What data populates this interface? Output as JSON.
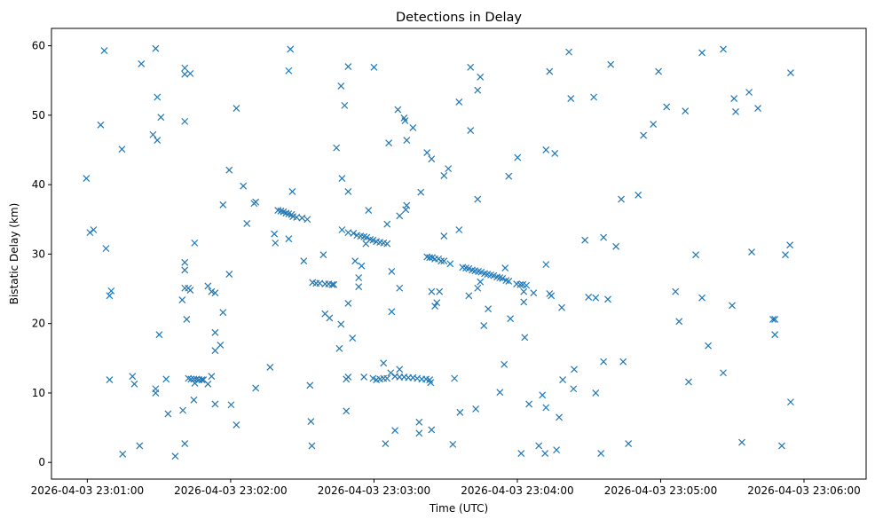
{
  "chart_data": {
    "type": "scatter",
    "title": "Detections in Delay",
    "xlabel": "Time (UTC)",
    "ylabel": "Bistatic Delay (km)",
    "x_units": "seconds after 2026-04-03 23:00:00 UTC",
    "xlim": [
      45,
      386
    ],
    "ylim": [
      -2.4,
      62.5
    ],
    "x_ticks": [
      {
        "value": 60,
        "label": "2026-04-03 23:01:00"
      },
      {
        "value": 120,
        "label": "2026-04-03 23:02:00"
      },
      {
        "value": 180,
        "label": "2026-04-03 23:03:00"
      },
      {
        "value": 240,
        "label": "2026-04-03 23:04:00"
      },
      {
        "value": 300,
        "label": "2026-04-03 23:05:00"
      },
      {
        "value": 360,
        "label": "2026-04-03 23:06:00"
      }
    ],
    "y_ticks": [
      {
        "value": 0,
        "label": "0"
      },
      {
        "value": 10,
        "label": "10"
      },
      {
        "value": 20,
        "label": "20"
      },
      {
        "value": 30,
        "label": "30"
      },
      {
        "value": 40,
        "label": "40"
      },
      {
        "value": 50,
        "label": "50"
      },
      {
        "value": 60,
        "label": "60"
      }
    ],
    "grid": false,
    "marker": "x",
    "color": "#1f77b4",
    "points": [
      [
        59.6,
        40.9
      ],
      [
        61.1,
        33.1
      ],
      [
        62.6,
        33.5
      ],
      [
        65.6,
        48.6
      ],
      [
        67.1,
        59.3
      ],
      [
        67.8,
        30.8
      ],
      [
        69.3,
        24.0
      ],
      [
        70.0,
        24.7
      ],
      [
        69.3,
        11.9
      ],
      [
        74.5,
        45.1
      ],
      [
        74.8,
        1.2
      ],
      [
        78.9,
        12.4
      ],
      [
        79.7,
        11.3
      ],
      [
        81.9,
        2.4
      ],
      [
        82.6,
        57.4
      ],
      [
        88.6,
        59.6
      ],
      [
        87.5,
        47.2
      ],
      [
        89.3,
        46.4
      ],
      [
        89.3,
        52.6
      ],
      [
        90.8,
        49.7
      ],
      [
        90.1,
        18.4
      ],
      [
        88.6,
        10.6
      ],
      [
        88.6,
        10.0
      ],
      [
        93.0,
        12.0
      ],
      [
        93.8,
        7.0
      ],
      [
        96.8,
        0.9
      ],
      [
        100.8,
        56.8
      ],
      [
        100.8,
        55.9
      ],
      [
        103.1,
        56.0
      ],
      [
        100.8,
        49.1
      ],
      [
        100.8,
        28.8
      ],
      [
        100.8,
        27.7
      ],
      [
        99.7,
        23.4
      ],
      [
        100.8,
        25.1
      ],
      [
        102.3,
        25.1
      ],
      [
        103.1,
        24.8
      ],
      [
        101.6,
        20.6
      ],
      [
        100.0,
        7.5
      ],
      [
        100.8,
        2.7
      ],
      [
        104.9,
        31.6
      ],
      [
        102.3,
        12.1
      ],
      [
        103.4,
        12.0
      ],
      [
        104.6,
        12.0
      ],
      [
        105.7,
        12.0
      ],
      [
        106.8,
        11.9
      ],
      [
        107.9,
        11.9
      ],
      [
        108.6,
        11.9
      ],
      [
        104.6,
        9.0
      ],
      [
        105.0,
        11.4
      ],
      [
        110.5,
        11.3
      ],
      [
        112.0,
        12.4
      ],
      [
        110.5,
        25.4
      ],
      [
        112.0,
        24.6
      ],
      [
        113.5,
        24.4
      ],
      [
        113.5,
        18.7
      ],
      [
        113.5,
        16.1
      ],
      [
        113.5,
        8.4
      ],
      [
        115.7,
        16.9
      ],
      [
        116.8,
        21.6
      ],
      [
        116.8,
        37.1
      ],
      [
        119.4,
        42.1
      ],
      [
        119.4,
        27.1
      ],
      [
        120.2,
        8.3
      ],
      [
        122.4,
        5.4
      ],
      [
        122.4,
        51.0
      ],
      [
        125.3,
        39.8
      ],
      [
        126.8,
        34.4
      ],
      [
        129.8,
        37.3
      ],
      [
        130.5,
        37.5
      ],
      [
        130.5,
        10.7
      ],
      [
        136.5,
        13.7
      ],
      [
        138.3,
        32.9
      ],
      [
        138.7,
        31.6
      ],
      [
        139.8,
        36.3
      ],
      [
        141.0,
        36.2
      ],
      [
        142.1,
        36.1
      ],
      [
        143.2,
        35.9
      ],
      [
        144.3,
        35.8
      ],
      [
        145.5,
        35.7
      ],
      [
        146.1,
        35.4
      ],
      [
        144.3,
        56.4
      ],
      [
        145.0,
        59.5
      ],
      [
        144.3,
        32.2
      ],
      [
        145.8,
        39.0
      ],
      [
        147.6,
        35.3
      ],
      [
        149.9,
        35.2
      ],
      [
        152.1,
        35.0
      ],
      [
        150.6,
        29.0
      ],
      [
        153.2,
        11.1
      ],
      [
        153.6,
        5.9
      ],
      [
        154.0,
        2.4
      ],
      [
        154.3,
        25.9
      ],
      [
        155.8,
        25.8
      ],
      [
        157.3,
        25.8
      ],
      [
        159.5,
        25.7
      ],
      [
        161.0,
        25.7
      ],
      [
        162.5,
        25.6
      ],
      [
        163.2,
        25.6
      ],
      [
        158.8,
        29.9
      ],
      [
        159.5,
        21.4
      ],
      [
        161.4,
        20.8
      ],
      [
        164.3,
        45.3
      ],
      [
        166.2,
        54.2
      ],
      [
        166.6,
        40.9
      ],
      [
        166.2,
        19.9
      ],
      [
        165.5,
        16.4
      ],
      [
        167.7,
        51.4
      ],
      [
        169.2,
        57.0
      ],
      [
        169.2,
        39.0
      ],
      [
        169.2,
        22.9
      ],
      [
        168.4,
        12.0
      ],
      [
        169.2,
        12.3
      ],
      [
        168.4,
        7.4
      ],
      [
        171.0,
        17.9
      ],
      [
        172.1,
        29.0
      ],
      [
        173.6,
        26.6
      ],
      [
        173.6,
        25.3
      ],
      [
        174.8,
        28.3
      ],
      [
        166.6,
        33.5
      ],
      [
        169.2,
        33.1
      ],
      [
        171.4,
        33.0
      ],
      [
        172.9,
        32.7
      ],
      [
        174.4,
        32.6
      ],
      [
        175.8,
        32.5
      ],
      [
        177.0,
        32.4
      ],
      [
        178.4,
        32.1
      ],
      [
        179.6,
        32.0
      ],
      [
        181.0,
        31.8
      ],
      [
        182.5,
        31.7
      ],
      [
        184.0,
        31.6
      ],
      [
        185.5,
        31.5
      ],
      [
        175.8,
        12.3
      ],
      [
        177.7,
        36.3
      ],
      [
        176.6,
        31.5
      ],
      [
        180.0,
        56.9
      ],
      [
        179.6,
        12.1
      ],
      [
        181.0,
        11.9
      ],
      [
        182.5,
        12.0
      ],
      [
        184.0,
        12.1
      ],
      [
        185.5,
        12.1
      ],
      [
        184.0,
        14.3
      ],
      [
        184.8,
        2.7
      ],
      [
        185.5,
        34.3
      ],
      [
        186.2,
        46.0
      ],
      [
        187.4,
        27.5
      ],
      [
        187.4,
        21.7
      ],
      [
        188.8,
        4.6
      ],
      [
        190.0,
        50.8
      ],
      [
        190.7,
        25.1
      ],
      [
        190.7,
        13.4
      ],
      [
        190.7,
        35.5
      ],
      [
        187.0,
        12.9
      ],
      [
        188.8,
        12.4
      ],
      [
        190.7,
        12.3
      ],
      [
        192.6,
        12.3
      ],
      [
        194.4,
        12.2
      ],
      [
        196.3,
        12.2
      ],
      [
        198.1,
        12.1
      ],
      [
        200.0,
        12.0
      ],
      [
        201.8,
        12.0
      ],
      [
        203.3,
        11.9
      ],
      [
        203.7,
        11.5
      ],
      [
        192.6,
        49.6
      ],
      [
        193.0,
        49.2
      ],
      [
        193.7,
        37.0
      ],
      [
        193.3,
        36.4
      ],
      [
        193.7,
        46.4
      ],
      [
        196.3,
        48.2
      ],
      [
        198.9,
        5.8
      ],
      [
        198.9,
        4.2
      ],
      [
        199.6,
        38.9
      ],
      [
        202.2,
        44.6
      ],
      [
        204.1,
        43.7
      ],
      [
        202.2,
        29.6
      ],
      [
        203.3,
        29.5
      ],
      [
        204.4,
        29.5
      ],
      [
        205.5,
        29.3
      ],
      [
        207.0,
        29.3
      ],
      [
        208.1,
        29.0
      ],
      [
        209.3,
        29.0
      ],
      [
        204.1,
        24.6
      ],
      [
        205.5,
        22.5
      ],
      [
        206.3,
        23.0
      ],
      [
        204.1,
        4.7
      ],
      [
        207.4,
        24.6
      ],
      [
        209.3,
        32.6
      ],
      [
        209.3,
        41.3
      ],
      [
        211.1,
        42.3
      ],
      [
        211.9,
        28.6
      ],
      [
        213.7,
        12.1
      ],
      [
        213.0,
        2.6
      ],
      [
        215.6,
        51.9
      ],
      [
        215.6,
        33.5
      ],
      [
        216.0,
        7.2
      ],
      [
        217.1,
        28.1
      ],
      [
        218.5,
        28.0
      ],
      [
        219.7,
        27.9
      ],
      [
        221.1,
        27.7
      ],
      [
        222.3,
        27.6
      ],
      [
        223.7,
        27.5
      ],
      [
        224.9,
        27.4
      ],
      [
        226.3,
        27.2
      ],
      [
        227.5,
        27.1
      ],
      [
        228.9,
        27.0
      ],
      [
        230.1,
        26.9
      ],
      [
        231.5,
        26.7
      ],
      [
        232.7,
        26.6
      ],
      [
        233.8,
        26.5
      ],
      [
        235.3,
        26.2
      ],
      [
        236.4,
        26.1
      ],
      [
        239.7,
        25.7
      ],
      [
        241.2,
        25.6
      ],
      [
        242.3,
        25.6
      ],
      [
        243.8,
        25.5
      ],
      [
        220.4,
        56.9
      ],
      [
        220.4,
        47.8
      ],
      [
        219.7,
        24.0
      ],
      [
        222.6,
        7.7
      ],
      [
        223.4,
        53.6
      ],
      [
        224.5,
        55.5
      ],
      [
        223.4,
        37.9
      ],
      [
        223.4,
        25.1
      ],
      [
        224.5,
        26.0
      ],
      [
        226.0,
        19.7
      ],
      [
        227.8,
        22.1
      ],
      [
        232.7,
        10.1
      ],
      [
        234.5,
        14.1
      ],
      [
        234.9,
        28.0
      ],
      [
        236.4,
        41.2
      ],
      [
        237.1,
        20.7
      ],
      [
        240.1,
        43.9
      ],
      [
        241.6,
        1.3
      ],
      [
        242.7,
        23.1
      ],
      [
        242.7,
        24.6
      ],
      [
        243.1,
        18.0
      ],
      [
        244.9,
        8.4
      ],
      [
        246.8,
        24.4
      ],
      [
        249.0,
        2.4
      ],
      [
        250.5,
        9.7
      ],
      [
        251.6,
        1.3
      ],
      [
        252.0,
        7.9
      ],
      [
        252.0,
        28.5
      ],
      [
        253.5,
        56.3
      ],
      [
        252.0,
        45.0
      ],
      [
        253.5,
        24.3
      ],
      [
        254.2,
        24.0
      ],
      [
        255.7,
        44.5
      ],
      [
        256.4,
        1.8
      ],
      [
        257.5,
        6.5
      ],
      [
        258.6,
        22.3
      ],
      [
        259.0,
        11.9
      ],
      [
        261.6,
        59.1
      ],
      [
        262.4,
        52.4
      ],
      [
        263.8,
        13.4
      ],
      [
        263.5,
        10.6
      ],
      [
        268.3,
        32.0
      ],
      [
        269.8,
        23.8
      ],
      [
        272.0,
        52.6
      ],
      [
        272.8,
        23.7
      ],
      [
        272.8,
        10.0
      ],
      [
        275.0,
        1.3
      ],
      [
        276.1,
        32.4
      ],
      [
        276.1,
        14.5
      ],
      [
        277.9,
        23.5
      ],
      [
        279.1,
        57.3
      ],
      [
        281.3,
        31.1
      ],
      [
        283.5,
        37.9
      ],
      [
        284.3,
        14.5
      ],
      [
        286.5,
        2.7
      ],
      [
        290.6,
        38.5
      ],
      [
        292.8,
        47.1
      ],
      [
        296.9,
        48.7
      ],
      [
        299.1,
        56.3
      ],
      [
        302.5,
        51.2
      ],
      [
        306.2,
        24.6
      ],
      [
        307.7,
        20.3
      ],
      [
        310.3,
        50.6
      ],
      [
        311.7,
        11.6
      ],
      [
        314.7,
        29.9
      ],
      [
        317.3,
        59.0
      ],
      [
        317.3,
        23.7
      ],
      [
        319.9,
        16.8
      ],
      [
        326.2,
        12.9
      ],
      [
        326.2,
        59.5
      ],
      [
        329.9,
        22.6
      ],
      [
        330.7,
        52.4
      ],
      [
        331.4,
        50.5
      ],
      [
        334.0,
        2.9
      ],
      [
        337.0,
        53.3
      ],
      [
        338.1,
        30.3
      ],
      [
        340.7,
        51.0
      ],
      [
        347.0,
        20.6
      ],
      [
        347.8,
        20.6
      ],
      [
        347.8,
        18.4
      ],
      [
        350.7,
        2.4
      ],
      [
        352.2,
        29.9
      ],
      [
        354.1,
        31.3
      ],
      [
        354.4,
        56.1
      ],
      [
        354.4,
        8.7
      ]
    ]
  }
}
